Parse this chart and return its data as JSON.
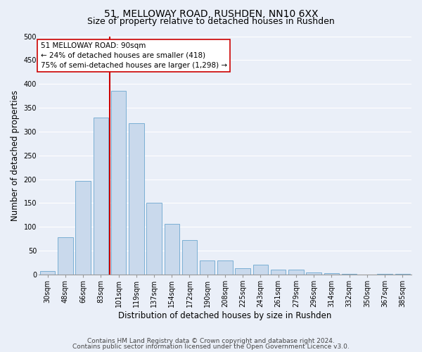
{
  "title_line1": "51, MELLOWAY ROAD, RUSHDEN, NN10 6XX",
  "title_line2": "Size of property relative to detached houses in Rushden",
  "xlabel": "Distribution of detached houses by size in Rushden",
  "ylabel": "Number of detached properties",
  "categories": [
    "30sqm",
    "48sqm",
    "66sqm",
    "83sqm",
    "101sqm",
    "119sqm",
    "137sqm",
    "154sqm",
    "172sqm",
    "190sqm",
    "208sqm",
    "225sqm",
    "243sqm",
    "261sqm",
    "279sqm",
    "296sqm",
    "314sqm",
    "332sqm",
    "350sqm",
    "367sqm",
    "385sqm"
  ],
  "values": [
    8,
    78,
    197,
    330,
    385,
    318,
    150,
    107,
    72,
    30,
    30,
    13,
    20,
    10,
    10,
    5,
    3,
    1,
    0,
    2,
    2
  ],
  "bar_color": "#c9d9ec",
  "bar_edge_color": "#7bafd4",
  "vline_color": "#cc0000",
  "vline_index": 3.5,
  "annotation_text_line1": "51 MELLOWAY ROAD: 90sqm",
  "annotation_text_line2": "← 24% of detached houses are smaller (418)",
  "annotation_text_line3": "75% of semi-detached houses are larger (1,298) →",
  "annotation_box_color": "#ffffff",
  "annotation_box_edge_color": "#cc0000",
  "footnote_line1": "Contains HM Land Registry data © Crown copyright and database right 2024.",
  "footnote_line2": "Contains public sector information licensed under the Open Government Licence v3.0.",
  "ylim": [
    0,
    500
  ],
  "yticks": [
    0,
    50,
    100,
    150,
    200,
    250,
    300,
    350,
    400,
    450,
    500
  ],
  "background_color": "#eaeff8",
  "plot_background_color": "#eaeff8",
  "grid_color": "#ffffff",
  "title_fontsize": 10,
  "subtitle_fontsize": 9,
  "axis_label_fontsize": 8.5,
  "tick_fontsize": 7,
  "annotation_fontsize": 7.5,
  "footnote_fontsize": 6.5
}
